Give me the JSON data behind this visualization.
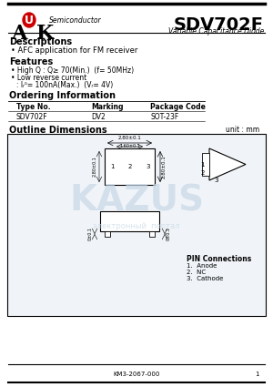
{
  "title": "SDV702F",
  "subtitle": "Variable Capacitance Diode",
  "company": "AUK Semiconductor",
  "section_descriptions": "Descriptions",
  "desc_bullet": "AFC application for FM receiver",
  "section_features": "Features",
  "feat_bullet1": "High Q : Q≥ 70(Min.)  (f= 50MHz)",
  "feat_bullet2": "Low reverse current",
  "feat_bullet3": ": Iᵣᵟ= 100nA(Max.)  (Vᵣ= 4V)",
  "section_ordering": "Ordering Information",
  "col1": "Type No.",
  "col2": "Marking",
  "col3": "Package Code",
  "row1_1": "SDV702F",
  "row1_2": "DV2",
  "row1_3": "SOT-23F",
  "section_outline": "Outline Dimensions",
  "unit_label": "unit : mm",
  "pin_conn_title": "PIN Connections",
  "pin1": "1.  Anode",
  "pin2": "2.  NC",
  "pin3": "3.  Cathode",
  "footer": "KM3-2067-000",
  "footer_page": "1",
  "bg_color": "#ffffff",
  "text_color": "#000000",
  "watermark_color": "#c8d8e8",
  "logo_u_fill": "#cc0000",
  "border_color": "#000000",
  "dim_color": "#555555"
}
